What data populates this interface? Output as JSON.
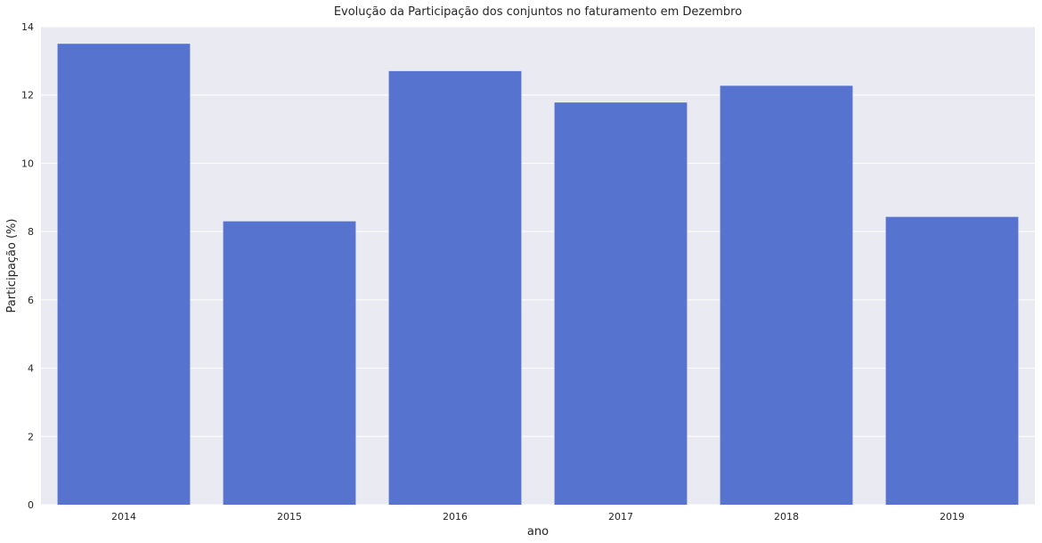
{
  "chart_data": {
    "type": "bar",
    "title": "Evolução da Participação dos conjuntos no faturamento em Dezembro",
    "xlabel": "ano",
    "ylabel": "Participação (%)",
    "categories": [
      "2014",
      "2015",
      "2016",
      "2017",
      "2018",
      "2019"
    ],
    "values": [
      13.5,
      8.3,
      12.7,
      11.78,
      12.27,
      8.43
    ],
    "ylim": [
      0,
      14
    ],
    "yticks": [
      0,
      2,
      4,
      6,
      8,
      10,
      12,
      14
    ],
    "grid": true,
    "legend": "none",
    "colors": {
      "bar": "#5573cf",
      "background": "#eaeaf2",
      "grid": "#ffffff"
    }
  }
}
